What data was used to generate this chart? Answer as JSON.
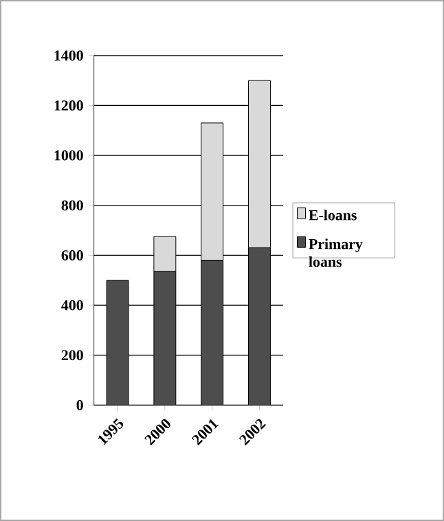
{
  "chart_data": {
    "type": "bar",
    "stacked": true,
    "categories": [
      "1995",
      "2000",
      "2001",
      "2002"
    ],
    "series": [
      {
        "name": "Primary loans",
        "color": "#4d4d4d",
        "values": [
          500,
          535,
          580,
          630
        ]
      },
      {
        "name": "E-loans",
        "color": "#d9d9d9",
        "values": [
          0,
          140,
          550,
          670
        ]
      }
    ],
    "ylim": [
      0,
      1400
    ],
    "yticks": [
      0,
      200,
      400,
      600,
      800,
      1000,
      1200,
      1400
    ],
    "grid": "y",
    "legend": "right"
  }
}
